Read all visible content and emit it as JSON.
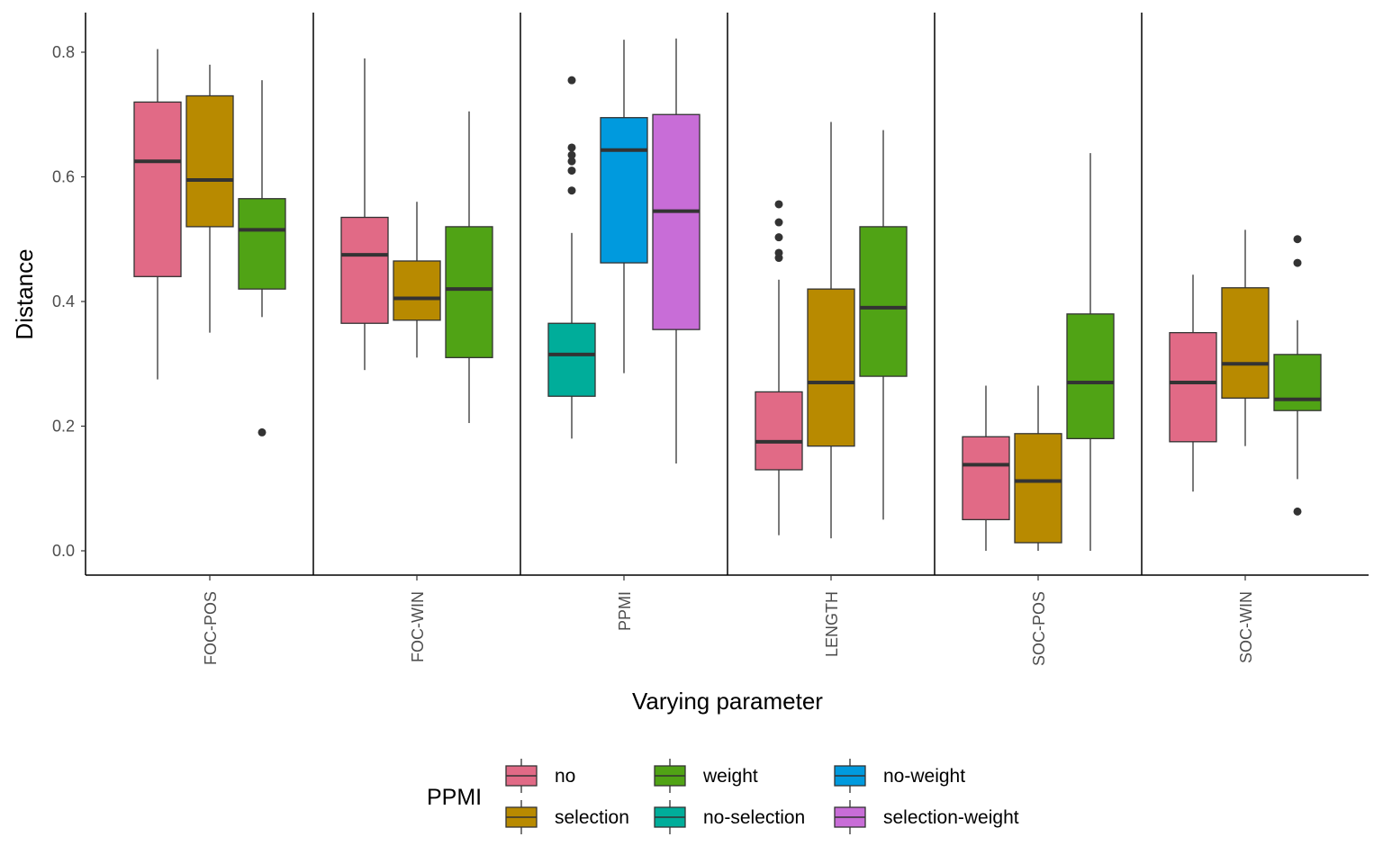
{
  "chart_data": {
    "type": "boxplot",
    "title": "",
    "xlabel": "Varying parameter",
    "ylabel": "Distance",
    "ylim": [
      -0.04,
      0.86
    ],
    "yticks": [
      "0.0",
      "0.2",
      "0.4",
      "0.6",
      "0.8"
    ],
    "ytick_values": [
      0.0,
      0.2,
      0.4,
      0.6,
      0.8
    ],
    "categories": [
      "FOC-POS",
      "FOC-WIN",
      "PPMI",
      "LENGTH",
      "SOC-POS",
      "SOC-WIN"
    ],
    "grid": false,
    "legend_position": "bottom",
    "legend_title": "PPMI",
    "series": [
      {
        "name": "no",
        "color": "#E16A86"
      },
      {
        "name": "selection",
        "color": "#B88A00"
      },
      {
        "name": "weight",
        "color": "#50A315"
      },
      {
        "name": "no-selection",
        "color": "#00AD9A"
      },
      {
        "name": "no-weight",
        "color": "#009ADE"
      },
      {
        "name": "selection-weight",
        "color": "#C86DD7"
      }
    ],
    "boxes": [
      {
        "category": "FOC-POS",
        "series": "no",
        "whisker_low": 0.275,
        "q1": 0.44,
        "median": 0.625,
        "q3": 0.72,
        "whisker_high": 0.805,
        "outliers": []
      },
      {
        "category": "FOC-POS",
        "series": "selection",
        "whisker_low": 0.35,
        "q1": 0.52,
        "median": 0.595,
        "q3": 0.73,
        "whisker_high": 0.78,
        "outliers": []
      },
      {
        "category": "FOC-POS",
        "series": "weight",
        "whisker_low": 0.375,
        "q1": 0.42,
        "median": 0.515,
        "q3": 0.565,
        "whisker_high": 0.755,
        "outliers": [
          0.19
        ]
      },
      {
        "category": "FOC-WIN",
        "series": "no",
        "whisker_low": 0.29,
        "q1": 0.365,
        "median": 0.475,
        "q3": 0.535,
        "whisker_high": 0.79,
        "outliers": []
      },
      {
        "category": "FOC-WIN",
        "series": "selection",
        "whisker_low": 0.31,
        "q1": 0.37,
        "median": 0.405,
        "q3": 0.465,
        "whisker_high": 0.56,
        "outliers": []
      },
      {
        "category": "FOC-WIN",
        "series": "weight",
        "whisker_low": 0.205,
        "q1": 0.31,
        "median": 0.42,
        "q3": 0.52,
        "whisker_high": 0.705,
        "outliers": []
      },
      {
        "category": "PPMI",
        "series": "no-selection",
        "whisker_low": 0.18,
        "q1": 0.248,
        "median": 0.315,
        "q3": 0.365,
        "whisker_high": 0.51,
        "outliers": [
          0.578,
          0.61,
          0.625,
          0.635,
          0.647,
          0.755
        ]
      },
      {
        "category": "PPMI",
        "series": "no-weight",
        "whisker_low": 0.285,
        "q1": 0.462,
        "median": 0.643,
        "q3": 0.695,
        "whisker_high": 0.82,
        "outliers": []
      },
      {
        "category": "PPMI",
        "series": "selection-weight",
        "whisker_low": 0.14,
        "q1": 0.355,
        "median": 0.545,
        "q3": 0.7,
        "whisker_high": 0.822,
        "outliers": []
      },
      {
        "category": "LENGTH",
        "series": "no",
        "whisker_low": 0.025,
        "q1": 0.13,
        "median": 0.175,
        "q3": 0.255,
        "whisker_high": 0.435,
        "outliers": [
          0.47,
          0.478,
          0.503,
          0.527,
          0.556
        ]
      },
      {
        "category": "LENGTH",
        "series": "selection",
        "whisker_low": 0.02,
        "q1": 0.168,
        "median": 0.27,
        "q3": 0.42,
        "whisker_high": 0.688,
        "outliers": []
      },
      {
        "category": "LENGTH",
        "series": "weight",
        "whisker_low": 0.05,
        "q1": 0.28,
        "median": 0.39,
        "q3": 0.52,
        "whisker_high": 0.675,
        "outliers": []
      },
      {
        "category": "SOC-POS",
        "series": "no",
        "whisker_low": 0.0,
        "q1": 0.05,
        "median": 0.138,
        "q3": 0.183,
        "whisker_high": 0.265,
        "outliers": []
      },
      {
        "category": "SOC-POS",
        "series": "selection",
        "whisker_low": 0.0,
        "q1": 0.013,
        "median": 0.112,
        "q3": 0.188,
        "whisker_high": 0.265,
        "outliers": []
      },
      {
        "category": "SOC-POS",
        "series": "weight",
        "whisker_low": 0.0,
        "q1": 0.18,
        "median": 0.27,
        "q3": 0.38,
        "whisker_high": 0.638,
        "outliers": []
      },
      {
        "category": "SOC-WIN",
        "series": "no",
        "whisker_low": 0.095,
        "q1": 0.175,
        "median": 0.27,
        "q3": 0.35,
        "whisker_high": 0.443,
        "outliers": []
      },
      {
        "category": "SOC-WIN",
        "series": "selection",
        "whisker_low": 0.168,
        "q1": 0.245,
        "median": 0.3,
        "q3": 0.422,
        "whisker_high": 0.515,
        "outliers": []
      },
      {
        "category": "SOC-WIN",
        "series": "weight",
        "whisker_low": 0.115,
        "q1": 0.225,
        "median": 0.243,
        "q3": 0.315,
        "whisker_high": 0.37,
        "outliers": [
          0.063,
          0.462,
          0.5
        ]
      }
    ]
  }
}
